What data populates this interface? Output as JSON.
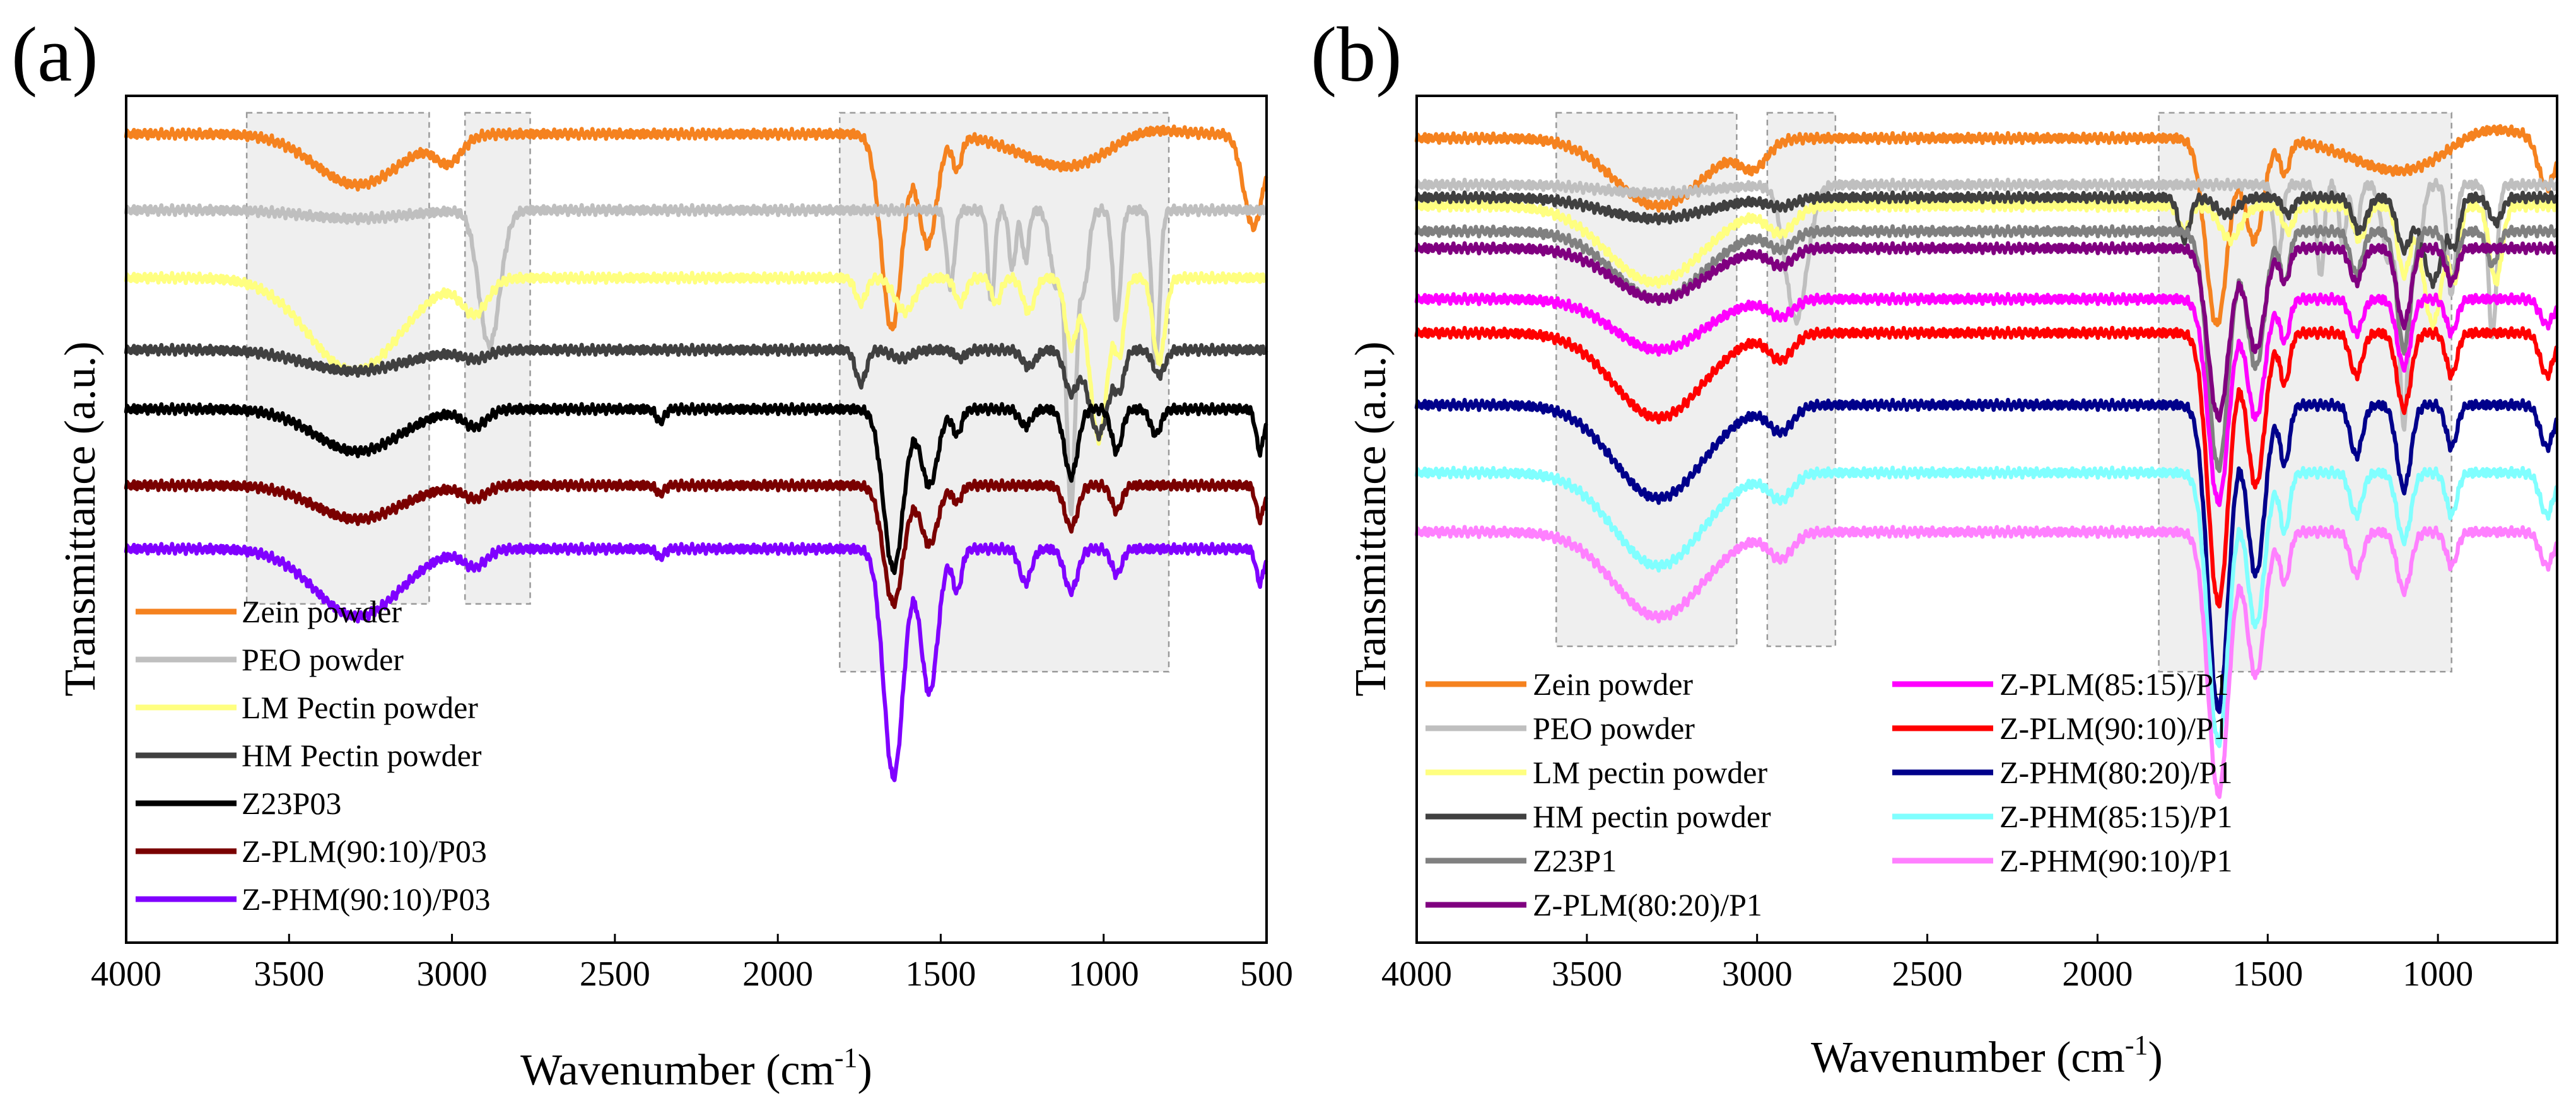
{
  "figure": {
    "background": "#ffffff",
    "shade_color": "#efefef",
    "shade_border": "#9a9a9a"
  },
  "chart_data": [
    {
      "panel_label": "(a)",
      "type": "line",
      "title": "",
      "xlabel": "Wavenumber",
      "xlabel_unit": "(cm",
      "xlabel_exp": "-1",
      "xlabel_close": ")",
      "ylabel": "Transmittance (a.u.)",
      "xlim": [
        4000,
        500
      ],
      "ylim": [
        0,
        100
      ],
      "xticks": [
        "4000",
        "3500",
        "3000",
        "2500",
        "2000",
        "1500",
        "1000",
        "500"
      ],
      "xtick_values": [
        4000,
        3500,
        3000,
        2500,
        2000,
        1500,
        1000,
        500
      ],
      "grid": false,
      "legend_position": "lower-left",
      "shaded_regions": [
        {
          "x0": 3630,
          "x1": 3070,
          "y0": 40,
          "y1": 98
        },
        {
          "x0": 2960,
          "x1": 2760,
          "y0": 40,
          "y1": 98
        },
        {
          "x0": 1810,
          "x1": 800,
          "y0": 32,
          "y1": 98
        }
      ],
      "series": [
        {
          "name": "Zein powder",
          "color": "#f5821f",
          "baseline": 95.5,
          "features": [
            [
              3290,
              6,
              130
            ],
            [
              3010,
              3,
              40
            ],
            [
              1650,
              23,
              32
            ],
            [
              1540,
              13,
              28
            ],
            [
              1450,
              4,
              14
            ],
            [
              1100,
              4,
              150
            ],
            [
              900,
              -1.5,
              100
            ],
            [
              540,
              11,
              30
            ]
          ]
        },
        {
          "name": "PEO powder",
          "color": "#bfbfbf",
          "baseline": 86.5,
          "features": [
            [
              3300,
              1,
              150
            ],
            [
              2885,
              16,
              32
            ],
            [
              1470,
              9,
              12
            ],
            [
              1345,
              11,
              10
            ],
            [
              1280,
              7,
              10
            ],
            [
              1240,
              6,
              10
            ],
            [
              1145,
              9,
              18
            ],
            [
              1100,
              35,
              14
            ],
            [
              1060,
              9,
              14
            ],
            [
              960,
              13,
              12
            ],
            [
              840,
              18,
              12
            ]
          ]
        },
        {
          "name": "LM Pectin powder",
          "color": "#ffff80",
          "baseline": 78.5,
          "features": [
            [
              3300,
              11,
              140
            ],
            [
              2930,
              4,
              40
            ],
            [
              1745,
              3,
              16
            ],
            [
              1610,
              4,
              30
            ],
            [
              1440,
              3,
              16
            ],
            [
              1330,
              3,
              14
            ],
            [
              1230,
              4,
              18
            ],
            [
              1100,
              8,
              18
            ],
            [
              1015,
              19,
              28
            ],
            [
              950,
              8,
              14
            ],
            [
              830,
              10,
              18
            ]
          ]
        },
        {
          "name": "HM Pectin powder",
          "color": "#404040",
          "baseline": 70.0,
          "features": [
            [
              3300,
              2.5,
              150
            ],
            [
              2930,
              1,
              40
            ],
            [
              1745,
              4,
              16
            ],
            [
              1620,
              1,
              30
            ],
            [
              1440,
              1,
              16
            ],
            [
              1230,
              2,
              20
            ],
            [
              1100,
              5,
              20
            ],
            [
              1015,
              10,
              30
            ],
            [
              950,
              4,
              14
            ],
            [
              830,
              3,
              18
            ]
          ]
        },
        {
          "name": "Z23P03",
          "color": "#000000",
          "baseline": 63.0,
          "features": [
            [
              3290,
              5,
              130
            ],
            [
              2930,
              2,
              35
            ],
            [
              2360,
              1.5,
              12
            ],
            [
              1645,
              19,
              30
            ],
            [
              1535,
              9,
              26
            ],
            [
              1450,
              3,
              14
            ],
            [
              1240,
              2,
              18
            ],
            [
              1100,
              8,
              20
            ],
            [
              960,
              5,
              16
            ],
            [
              840,
              3,
              16
            ],
            [
              520,
              5,
              12
            ]
          ]
        },
        {
          "name": "Z-PLM(90:10)/P03",
          "color": "#7a0000",
          "baseline": 54.0,
          "features": [
            [
              3290,
              4,
              130
            ],
            [
              2930,
              1.5,
              35
            ],
            [
              2360,
              1,
              12
            ],
            [
              1645,
              14,
              30
            ],
            [
              1535,
              7,
              26
            ],
            [
              1450,
              2,
              14
            ],
            [
              1100,
              5,
              20
            ],
            [
              960,
              3,
              16
            ],
            [
              520,
              4,
              12
            ]
          ]
        },
        {
          "name": "Z-PHM(90:10)/P03",
          "color": "#8000ff",
          "baseline": 46.5,
          "features": [
            [
              3290,
              8,
              130
            ],
            [
              2930,
              2,
              35
            ],
            [
              2360,
              1,
              12
            ],
            [
              1645,
              27,
              30
            ],
            [
              1535,
              17,
              26
            ],
            [
              1450,
              5,
              14
            ],
            [
              1240,
              4,
              18
            ],
            [
              1100,
              5,
              20
            ],
            [
              960,
              3,
              16
            ],
            [
              520,
              4,
              12
            ]
          ]
        }
      ]
    },
    {
      "panel_label": "(b)",
      "type": "line",
      "title": "",
      "xlabel": "Wavenumber",
      "xlabel_unit": "(cm",
      "xlabel_exp": "-1",
      "xlabel_close": ")",
      "ylabel": "Transmittance (a.u.)",
      "xlim": [
        4000,
        650
      ],
      "ylim": [
        0,
        100
      ],
      "xticks": [
        "4000",
        "3500",
        "3000",
        "2500",
        "2000",
        "1500",
        "1000"
      ],
      "xtick_values": [
        4000,
        3500,
        3000,
        2500,
        2000,
        1500,
        1000
      ],
      "grid": false,
      "legend_position": "lower-left",
      "shaded_regions": [
        {
          "x0": 3590,
          "x1": 3060,
          "y0": 35,
          "y1": 98
        },
        {
          "x0": 2970,
          "x1": 2770,
          "y0": 35,
          "y1": 98
        },
        {
          "x0": 1820,
          "x1": 960,
          "y0": 32,
          "y1": 98
        }
      ],
      "series": [
        {
          "name": "Zein powder",
          "color": "#f5821f",
          "baseline": 95.0,
          "features": [
            [
              3290,
              8,
              130
            ],
            [
              3010,
              3,
              40
            ],
            [
              1650,
              22,
              32
            ],
            [
              1540,
              12,
              28
            ],
            [
              1450,
              4,
              14
            ],
            [
              1100,
              4,
              150
            ],
            [
              880,
              -2,
              100
            ],
            [
              680,
              6,
              25
            ]
          ]
        },
        {
          "name": "PEO powder",
          "color": "#bfbfbf",
          "baseline": 89.5,
          "features": [
            [
              3300,
              1,
              150
            ],
            [
              2885,
              16,
              32
            ],
            [
              1470,
              9,
              12
            ],
            [
              1345,
              11,
              10
            ],
            [
              1280,
              7,
              10
            ],
            [
              1240,
              6,
              10
            ],
            [
              1145,
              9,
              18
            ],
            [
              1100,
              28,
              14
            ],
            [
              1060,
              9,
              14
            ],
            [
              960,
              13,
              12
            ],
            [
              840,
              18,
              12
            ]
          ]
        },
        {
          "name": "LM pectin powder",
          "color": "#ffff80",
          "baseline": 87.0,
          "features": [
            [
              3300,
              9,
              140
            ],
            [
              2930,
              3,
              40
            ],
            [
              1745,
              3,
              16
            ],
            [
              1610,
              4,
              30
            ],
            [
              1440,
              3,
              16
            ],
            [
              1230,
              4,
              18
            ],
            [
              1100,
              8,
              18
            ],
            [
              1015,
              14,
              28
            ],
            [
              950,
              8,
              14
            ],
            [
              830,
              9,
              18
            ]
          ]
        },
        {
          "name": "HM pectin powder",
          "color": "#404040",
          "baseline": 88.0,
          "features": [
            [
              3300,
              2.5,
              150
            ],
            [
              2930,
              1,
              40
            ],
            [
              1745,
              5,
              16
            ],
            [
              1620,
              2,
              30
            ],
            [
              1440,
              2,
              16
            ],
            [
              1230,
              4,
              20
            ],
            [
              1100,
              6,
              20
            ],
            [
              1015,
              10,
              30
            ],
            [
              950,
              5,
              14
            ],
            [
              830,
              3,
              18
            ]
          ]
        },
        {
          "name": "Z23P1",
          "color": "#808080",
          "baseline": 84.0,
          "features": [
            [
              3290,
              8,
              130
            ],
            [
              2930,
              2,
              35
            ],
            [
              1645,
              28,
              30
            ],
            [
              1535,
              16,
              26
            ],
            [
              1450,
              6,
              14
            ],
            [
              1240,
              5,
              18
            ],
            [
              1100,
              14,
              20
            ],
            [
              960,
              6,
              16
            ],
            [
              840,
              4,
              16
            ]
          ]
        },
        {
          "name": "Z-PLM(80:20)/P1",
          "color": "#800080",
          "baseline": 82.0,
          "features": [
            [
              3290,
              6,
              130
            ],
            [
              2930,
              2,
              35
            ],
            [
              1645,
              20,
              30
            ],
            [
              1535,
              12,
              26
            ],
            [
              1450,
              4,
              14
            ],
            [
              1240,
              4,
              18
            ],
            [
              1100,
              9,
              20
            ],
            [
              960,
              4,
              16
            ]
          ]
        },
        {
          "name": "Z-PLM(85:15)/P1",
          "color": "#ff00ff",
          "baseline": 76.0,
          "features": [
            [
              3290,
              6,
              130
            ],
            [
              2930,
              2,
              35
            ],
            [
              1645,
              24,
              30
            ],
            [
              1535,
              14,
              26
            ],
            [
              1450,
              5,
              14
            ],
            [
              1240,
              4,
              18
            ],
            [
              1100,
              8,
              20
            ],
            [
              960,
              4,
              16
            ],
            [
              680,
              3,
              20
            ]
          ]
        },
        {
          "name": "Z-PLM(90:10)/P1",
          "color": "#ff0000",
          "baseline": 72.0,
          "features": [
            [
              3290,
              10,
              130
            ],
            [
              2930,
              3,
              35
            ],
            [
              1645,
              32,
              30
            ],
            [
              1535,
              18,
              26
            ],
            [
              1450,
              6,
              14
            ],
            [
              1240,
              5,
              18
            ],
            [
              1100,
              9,
              20
            ],
            [
              960,
              5,
              16
            ],
            [
              680,
              5,
              20
            ]
          ]
        },
        {
          "name": "Z-PHM(80:20)/P1",
          "color": "#00008b",
          "baseline": 63.5,
          "features": [
            [
              3290,
              11,
              130
            ],
            [
              2930,
              3,
              35
            ],
            [
              1645,
              36,
              30
            ],
            [
              1535,
              20,
              26
            ],
            [
              1450,
              7,
              14
            ],
            [
              1240,
              6,
              18
            ],
            [
              1100,
              10,
              20
            ],
            [
              960,
              5,
              16
            ],
            [
              680,
              5,
              20
            ]
          ]
        },
        {
          "name": "Z-PHM(85:15)/P1",
          "color": "#80ffff",
          "baseline": 55.5,
          "features": [
            [
              3290,
              11,
              130
            ],
            [
              2930,
              3,
              35
            ],
            [
              1645,
              32,
              30
            ],
            [
              1535,
              18,
              26
            ],
            [
              1450,
              7,
              14
            ],
            [
              1240,
              5,
              18
            ],
            [
              1100,
              8,
              20
            ],
            [
              960,
              5,
              16
            ],
            [
              680,
              5,
              20
            ]
          ]
        },
        {
          "name": "Z-PHM(90:10)/P1",
          "color": "#ff80ff",
          "baseline": 48.5,
          "features": [
            [
              3290,
              10,
              130
            ],
            [
              2930,
              3,
              35
            ],
            [
              1645,
              31,
              30
            ],
            [
              1535,
              17,
              26
            ],
            [
              1450,
              6,
              14
            ],
            [
              1240,
              5,
              18
            ],
            [
              1100,
              7,
              20
            ],
            [
              960,
              4,
              16
            ],
            [
              680,
              4,
              20
            ]
          ]
        }
      ]
    }
  ]
}
